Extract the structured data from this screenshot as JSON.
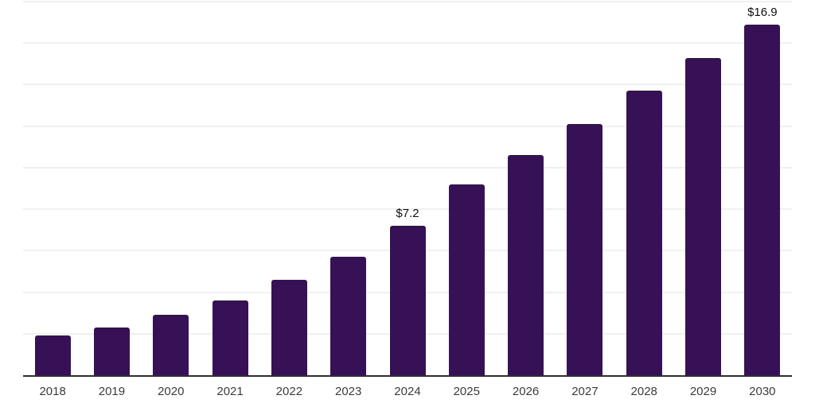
{
  "chart_data": {
    "type": "bar",
    "categories": [
      "2018",
      "2019",
      "2020",
      "2021",
      "2022",
      "2023",
      "2024",
      "2025",
      "2026",
      "2027",
      "2028",
      "2029",
      "2030"
    ],
    "values": [
      1.9,
      2.3,
      2.9,
      3.6,
      4.6,
      5.7,
      7.2,
      9.2,
      10.6,
      12.1,
      13.7,
      15.3,
      16.9
    ],
    "annotations": [
      {
        "category": "2024",
        "text": "$7.2"
      },
      {
        "category": "2030",
        "text": "$16.9"
      }
    ],
    "title": "",
    "xlabel": "",
    "ylabel": "",
    "ylim": [
      0,
      18
    ],
    "grid": true,
    "grid_step": 2,
    "legend": false,
    "colors": {
      "bar": "#371155",
      "axis_line": "#2e2e2e",
      "gridline": "#f0f0f0",
      "tick_label": "#3b3b3b",
      "annotation": "#0f0f0f",
      "background": "#ffffff"
    }
  }
}
